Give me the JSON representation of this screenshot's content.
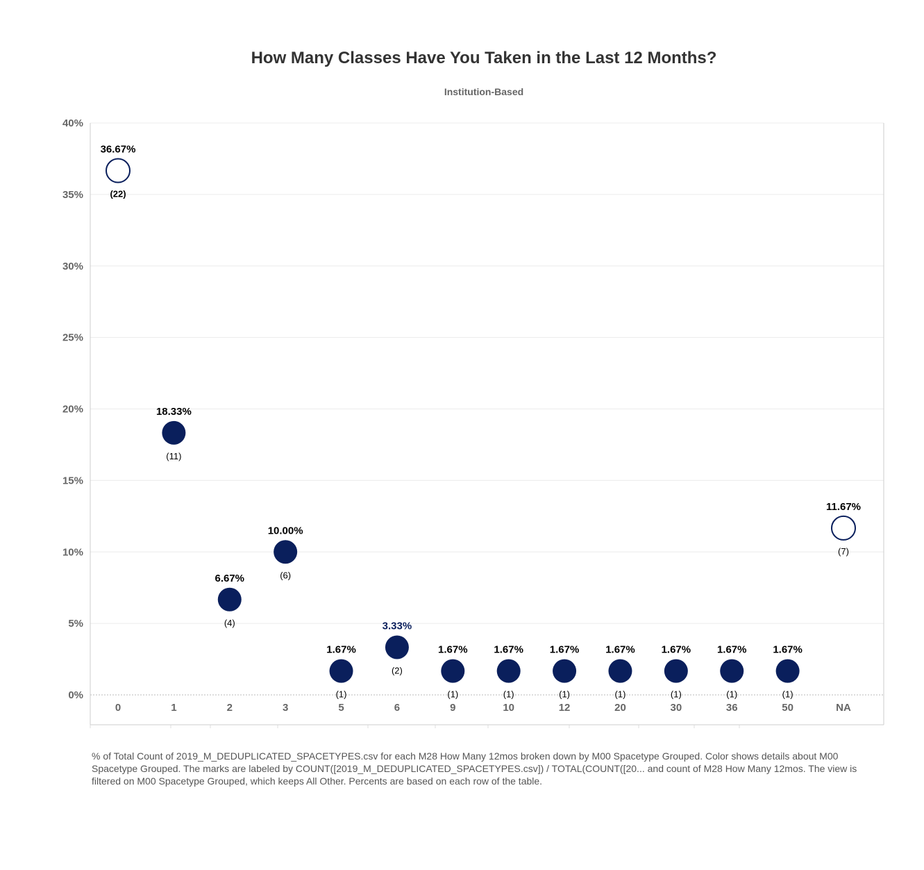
{
  "chart_data": {
    "type": "scatter",
    "title": "How Many Classes Have You Taken in the Last 12 Months?",
    "subtitle": "Institution-Based",
    "categories": [
      "0",
      "1",
      "2",
      "3",
      "5",
      "6",
      "9",
      "10",
      "12",
      "20",
      "30",
      "36",
      "50",
      "NA"
    ],
    "series": [
      {
        "values": [
          36.67,
          18.33,
          6.67,
          10.0,
          1.67,
          3.33,
          1.67,
          1.67,
          1.67,
          1.67,
          1.67,
          1.67,
          1.67,
          11.67
        ],
        "value_labels": [
          "36.67%",
          "18.33%",
          "6.67%",
          "10.00%",
          "1.67%",
          "3.33%",
          "1.67%",
          "1.67%",
          "1.67%",
          "1.67%",
          "1.67%",
          "1.67%",
          "1.67%",
          "11.67%"
        ],
        "count_labels": [
          "(22)",
          "(11)",
          "(4)",
          "(6)",
          "(1)",
          "(2)",
          "(1)",
          "(1)",
          "(1)",
          "(1)",
          "(1)",
          "(1)",
          "(1)",
          "(7)"
        ],
        "hollow": [
          true,
          false,
          false,
          false,
          false,
          false,
          false,
          false,
          false,
          false,
          false,
          false,
          false,
          true
        ]
      }
    ],
    "ylim": [
      0,
      40
    ],
    "yticks": [
      0,
      5,
      10,
      15,
      20,
      25,
      30,
      35,
      40
    ],
    "ytick_labels": [
      "0%",
      "5%",
      "10%",
      "15%",
      "20%",
      "25%",
      "30%",
      "35%",
      "40%"
    ],
    "grid": true,
    "colors": {
      "marker": "#0a1f5c",
      "grid": "#ececec",
      "axis": "#cccccc"
    }
  },
  "caption": "% of Total Count of 2019_M_DEDUPLICATED_SPACETYPES.csv for each M28 How Many 12mos broken down by M00 Spacetype Grouped.  Color shows details about M00 Spacetype Grouped.  The marks are labeled by COUNT([2019_M_DEDUPLICATED_SPACETYPES.csv]) / TOTAL(COUNT([20... and count of M28 How Many 12mos. The view is filtered on M00  Spacetype Grouped, which keeps All Other. Percents are based on each row of the table."
}
